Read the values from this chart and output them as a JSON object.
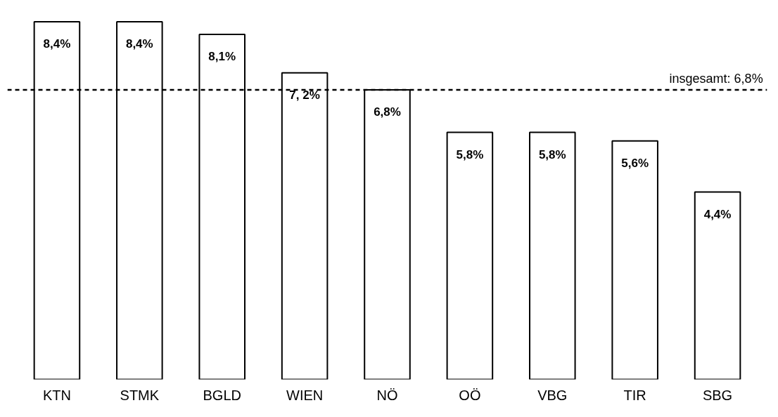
{
  "chart_data": {
    "type": "bar",
    "categories": [
      "KTN",
      "STMK",
      "BGLD",
      "WIEN",
      "NÖ",
      "OÖ",
      "VBG",
      "TIR",
      "SBG"
    ],
    "values": [
      8.4,
      8.4,
      8.1,
      7.2,
      6.8,
      5.8,
      5.8,
      5.6,
      4.4
    ],
    "value_labels": [
      "8,4%",
      "8,4%",
      "8,1%",
      "7, 2%",
      "6,8%",
      "5,8%",
      "5,8%",
      "5,6%",
      "4,4%"
    ],
    "color": "#ffffff",
    "ref_lines": [
      {
        "axis": "y",
        "value": 6.8,
        "label": "insgesamt: 6,8%",
        "color": "#000000",
        "line_style": "dashed"
      }
    ],
    "grid": false
  }
}
